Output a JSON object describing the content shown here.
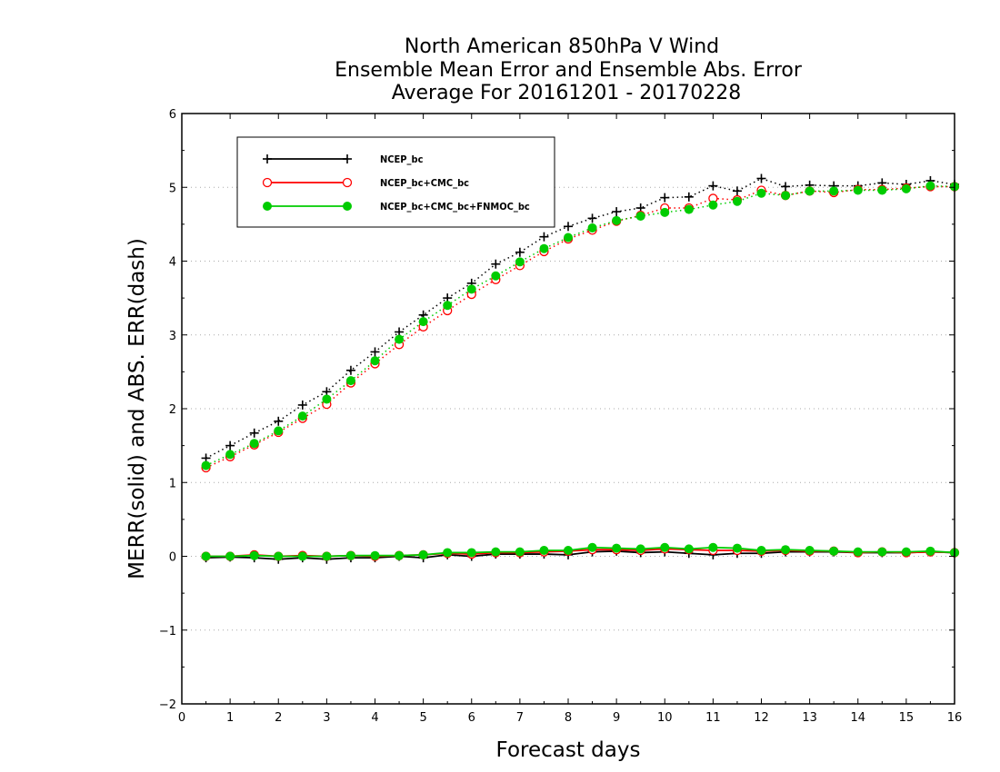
{
  "chart_data": {
    "type": "line",
    "title": [
      "North American 850hPa V Wind",
      "Ensemble Mean Error and Ensemble Abs. Error",
      "Average For 20161201 - 20170228"
    ],
    "xlabel": "Forecast days",
    "ylabel": "MERR(solid) and ABS. ERR(dash)",
    "xlim": [
      0,
      16
    ],
    "ylim": [
      -2,
      6
    ],
    "xticks": [
      "0",
      "1",
      "2",
      "3",
      "4",
      "5",
      "6",
      "7",
      "8",
      "9",
      "10",
      "11",
      "12",
      "13",
      "14",
      "15",
      "16"
    ],
    "yticks": [
      "−2",
      "−1",
      "0",
      "1",
      "2",
      "3",
      "4",
      "5",
      "6"
    ],
    "grid": "horizontal dotted",
    "legend_position": "top-left",
    "x": [
      0.5,
      1,
      1.5,
      2,
      2.5,
      3,
      3.5,
      4,
      4.5,
      5,
      5.5,
      6,
      6.5,
      7,
      7.5,
      8,
      8.5,
      9,
      9.5,
      10,
      10.5,
      11,
      11.5,
      12,
      12.5,
      13,
      13.5,
      14,
      14.5,
      15,
      15.5,
      16
    ],
    "series": [
      {
        "name": "NCEP_bc",
        "color": "#000000",
        "marker": "plus",
        "mean_error": [
          -0.02,
          -0.01,
          -0.02,
          -0.04,
          -0.02,
          -0.04,
          -0.02,
          -0.02,
          0.0,
          -0.02,
          0.02,
          0.0,
          0.03,
          0.03,
          0.03,
          0.02,
          0.06,
          0.07,
          0.05,
          0.06,
          0.04,
          0.02,
          0.04,
          0.04,
          0.06,
          0.06,
          0.06,
          0.05,
          0.05,
          0.05,
          0.06,
          0.05
        ],
        "abs_error": [
          1.33,
          1.5,
          1.67,
          1.83,
          2.05,
          2.23,
          2.52,
          2.77,
          3.04,
          3.27,
          3.5,
          3.7,
          3.96,
          4.12,
          4.33,
          4.47,
          4.58,
          4.67,
          4.72,
          4.86,
          4.87,
          5.02,
          4.95,
          5.12,
          5.01,
          5.03,
          5.02,
          5.02,
          5.06,
          5.04,
          5.09,
          5.04
        ]
      },
      {
        "name": "NCEP_bc+CMC_bc",
        "color": "#ff0000",
        "marker": "open-circle",
        "mean_error": [
          0.0,
          0.0,
          0.02,
          0.0,
          0.01,
          0.0,
          0.01,
          0.0,
          0.01,
          0.02,
          0.04,
          0.03,
          0.05,
          0.05,
          0.06,
          0.07,
          0.09,
          0.09,
          0.08,
          0.1,
          0.09,
          0.08,
          0.08,
          0.07,
          0.08,
          0.07,
          0.07,
          0.05,
          0.06,
          0.05,
          0.06,
          0.05
        ],
        "abs_error": [
          1.2,
          1.35,
          1.51,
          1.68,
          1.87,
          2.06,
          2.35,
          2.61,
          2.87,
          3.11,
          3.33,
          3.55,
          3.75,
          3.94,
          4.13,
          4.3,
          4.42,
          4.54,
          4.62,
          4.72,
          4.72,
          4.85,
          4.83,
          4.96,
          4.89,
          4.95,
          4.93,
          4.97,
          4.97,
          4.99,
          5.01,
          5.01
        ]
      },
      {
        "name": "NCEP_bc+CMC_bc+FNMOC_bc",
        "color": "#00cc00",
        "marker": "filled-circle",
        "mean_error": [
          0.0,
          0.0,
          0.01,
          0.0,
          0.0,
          0.0,
          0.01,
          0.01,
          0.01,
          0.02,
          0.05,
          0.05,
          0.06,
          0.06,
          0.08,
          0.08,
          0.12,
          0.11,
          0.1,
          0.12,
          0.1,
          0.12,
          0.11,
          0.08,
          0.09,
          0.08,
          0.07,
          0.06,
          0.06,
          0.06,
          0.07,
          0.05
        ],
        "abs_error": [
          1.23,
          1.38,
          1.53,
          1.7,
          1.9,
          2.13,
          2.38,
          2.65,
          2.94,
          3.18,
          3.4,
          3.62,
          3.8,
          3.99,
          4.17,
          4.32,
          4.45,
          4.55,
          4.61,
          4.66,
          4.7,
          4.76,
          4.81,
          4.92,
          4.89,
          4.95,
          4.95,
          4.96,
          4.96,
          4.98,
          5.02,
          5.01
        ]
      }
    ]
  }
}
